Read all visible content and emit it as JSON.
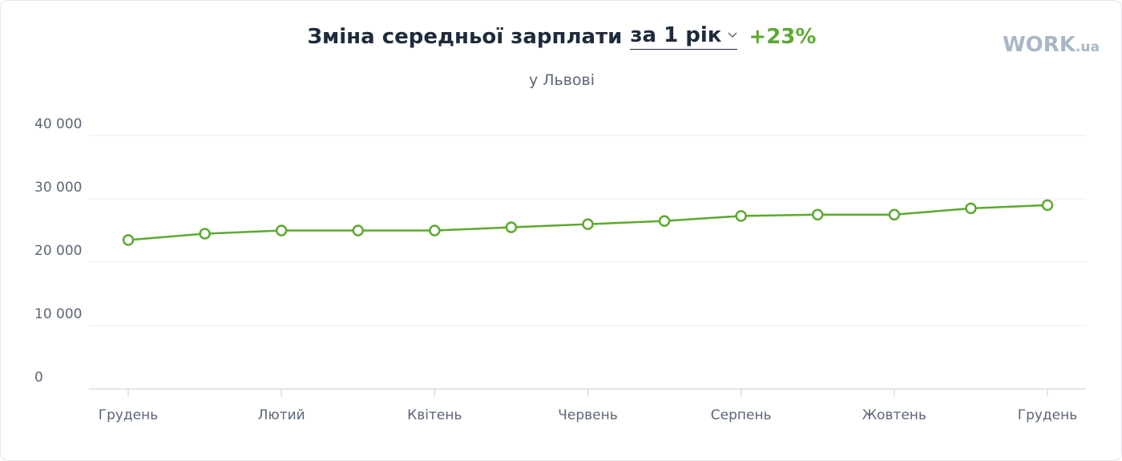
{
  "chart_data": {
    "type": "line",
    "title": "Зміна середньої зарплати",
    "period": "за 1 рік",
    "change": "+23%",
    "subtitle": "у Львові",
    "logo": {
      "main": "WORK",
      "suffix": ".ua"
    },
    "categories": [
      "Грудень",
      null,
      "Лютий",
      null,
      "Квітень",
      null,
      "Червень",
      null,
      "Серпень",
      null,
      "Жовтень",
      null,
      "Грудень"
    ],
    "values": [
      23500,
      24500,
      25000,
      25000,
      25000,
      25500,
      26000,
      26500,
      27300,
      27500,
      27500,
      28500,
      29000
    ],
    "color": "#5ca92f",
    "ylim": [
      0,
      40000
    ],
    "yticks": [
      0,
      {
        "value": 10000,
        "label": "10 000"
      },
      {
        "value": 20000,
        "label": "20 000"
      },
      {
        "value": 30000,
        "label": "30 000"
      },
      {
        "value": 40000,
        "label": "40 000"
      }
    ],
    "grid": true
  }
}
